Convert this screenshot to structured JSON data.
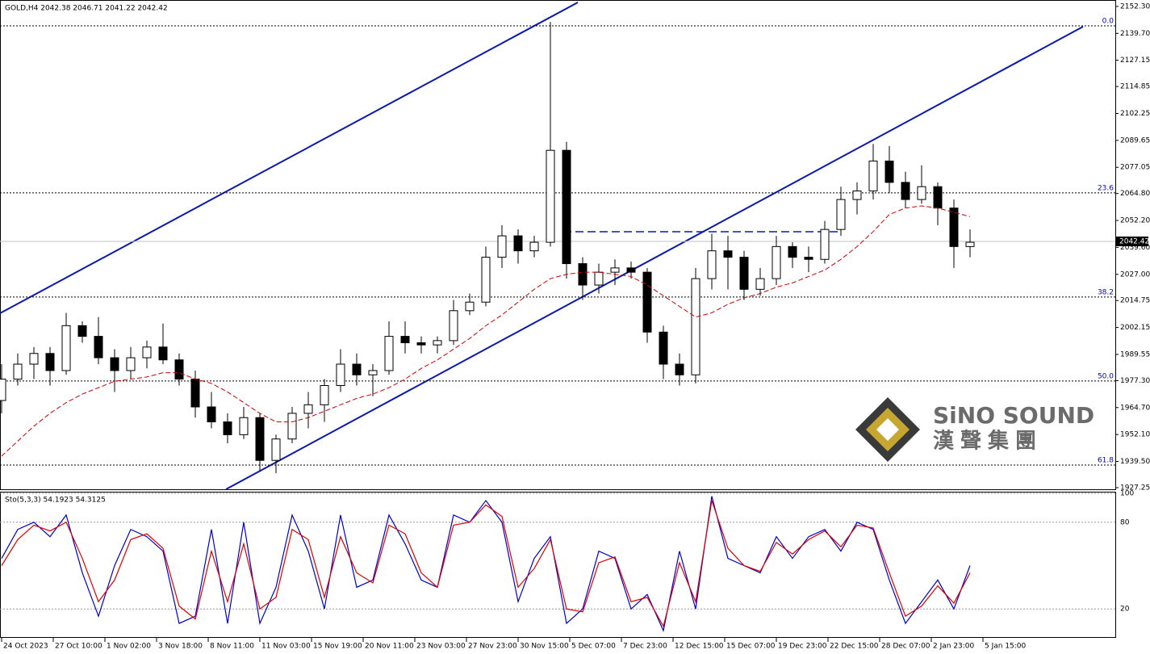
{
  "chart_data": [
    {
      "type": "candlestick",
      "title": "GOLD,H4 2042.38 2046.71 2041.22 2042.42",
      "x": [
        0,
        5,
        10,
        15,
        20,
        25,
        30,
        35,
        40,
        45,
        50,
        55,
        60,
        65,
        70,
        75,
        80,
        85,
        90,
        95,
        100,
        105,
        110,
        115,
        120,
        125,
        130,
        135,
        140,
        145,
        150,
        155,
        160,
        165,
        170,
        175,
        180,
        185,
        190,
        195,
        200,
        205,
        210,
        215,
        220,
        225,
        230,
        235,
        240,
        245,
        250,
        255,
        260,
        265,
        270,
        275,
        280,
        285,
        290,
        295,
        300
      ],
      "xlim": [
        -0.5,
        345
      ],
      "xticks": [
        {
          "value": 0,
          "label": "24 Oct 2023"
        },
        {
          "value": 16,
          "label": "27 Oct 10:00"
        },
        {
          "value": 32,
          "label": "1 Nov 02:00"
        },
        {
          "value": 48,
          "label": "3 Nov 18:00"
        },
        {
          "value": 64,
          "label": "8 Nov 11:00"
        },
        {
          "value": 80,
          "label": "11 Nov 03:00"
        },
        {
          "value": 96,
          "label": "15 Nov 19:00"
        },
        {
          "value": 112,
          "label": "20 Nov 11:00"
        },
        {
          "value": 128,
          "label": "23 Nov 03:00"
        },
        {
          "value": 144,
          "label": "27 Nov 23:00"
        },
        {
          "value": 160,
          "label": "30 Nov 15:00"
        },
        {
          "value": 176,
          "label": "5 Dec 07:00"
        },
        {
          "value": 192,
          "label": "7 Dec 23:00"
        },
        {
          "value": 208,
          "label": "12 Dec 15:00"
        },
        {
          "value": 224,
          "label": "15 Dec 07:00"
        },
        {
          "value": 240,
          "label": "19 Dec 23:00"
        },
        {
          "value": 256,
          "label": "22 Dec 15:00"
        },
        {
          "value": 272,
          "label": "28 Dec 07:00"
        },
        {
          "value": 288,
          "label": "2 Jan 23:00"
        },
        {
          "value": 304,
          "label": "5 Jan 15:00"
        }
      ],
      "ylim": [
        1926.1,
        2155.3
      ],
      "yticks": [
        {
          "value": 2152.3,
          "label": "2152.30"
        },
        {
          "value": 2139.7,
          "label": "2139.70"
        },
        {
          "value": 2127.15,
          "label": "2127.15"
        },
        {
          "value": 2114.85,
          "label": "2114.85"
        },
        {
          "value": 2102.25,
          "label": "2102.25"
        },
        {
          "value": 2089.65,
          "label": "2089.65"
        },
        {
          "value": 2077.05,
          "label": "2077.05"
        },
        {
          "value": 2064.8,
          "label": "2064.80"
        },
        {
          "value": 2052.2,
          "label": "2052.20"
        },
        {
          "value": 2039.6,
          "label": "2039.60"
        },
        {
          "value": 2027,
          "label": "2027.00"
        },
        {
          "value": 2014.75,
          "label": "2014.75"
        },
        {
          "value": 2002.15,
          "label": "2002.15"
        },
        {
          "value": 1989.55,
          "label": "1989.55"
        },
        {
          "value": 1977.3,
          "label": "1977.30"
        },
        {
          "value": 1964.7,
          "label": "1964.70"
        },
        {
          "value": 1952.1,
          "label": "1952.10"
        },
        {
          "value": 1939.5,
          "label": "1939.50"
        },
        {
          "value": 1927.25,
          "label": "1927.25"
        }
      ],
      "ohlc": [
        [
          1968,
          1985,
          1962,
          1978
        ],
        [
          1978,
          1990,
          1975,
          1985
        ],
        [
          1985,
          1993,
          1978,
          1990
        ],
        [
          1990,
          1993,
          1975,
          1982
        ],
        [
          1982,
          2009,
          1980,
          2003
        ],
        [
          2003,
          2005,
          1995,
          1998
        ],
        [
          1998,
          2007,
          1985,
          1988
        ],
        [
          1988,
          1992,
          1972,
          1982
        ],
        [
          1982,
          1993,
          1978,
          1988
        ],
        [
          1988,
          1996,
          1983,
          1993
        ],
        [
          1993,
          2004,
          1985,
          1987
        ],
        [
          1987,
          1990,
          1975,
          1978
        ],
        [
          1978,
          1982,
          1960,
          1965
        ],
        [
          1965,
          1972,
          1955,
          1958
        ],
        [
          1958,
          1962,
          1948,
          1952
        ],
        [
          1952,
          1965,
          1950,
          1960
        ],
        [
          1960,
          1962,
          1935,
          1940
        ],
        [
          1940,
          1952,
          1934,
          1950
        ],
        [
          1950,
          1965,
          1948,
          1962
        ],
        [
          1962,
          1972,
          1955,
          1966
        ],
        [
          1966,
          1978,
          1958,
          1975
        ],
        [
          1975,
          1992,
          1972,
          1985
        ],
        [
          1985,
          1990,
          1975,
          1980
        ],
        [
          1980,
          1985,
          1970,
          1982
        ],
        [
          1982,
          2005,
          1980,
          1998
        ],
        [
          1998,
          2005,
          1990,
          1995
        ],
        [
          1995,
          1998,
          1990,
          1994
        ],
        [
          1994,
          1998,
          1990,
          1996
        ],
        [
          1996,
          2015,
          1994,
          2010
        ],
        [
          2010,
          2018,
          2008,
          2014
        ],
        [
          2014,
          2040,
          2012,
          2035
        ],
        [
          2035,
          2050,
          2030,
          2045
        ],
        [
          2045,
          2048,
          2032,
          2038
        ],
        [
          2038,
          2045,
          2035,
          2042
        ],
        [
          2042,
          2145,
          2040,
          2085
        ],
        [
          2085,
          2089,
          2025,
          2032
        ],
        [
          2032,
          2035,
          2015,
          2022
        ],
        [
          2022,
          2032,
          2018,
          2028
        ],
        [
          2028,
          2034,
          2022,
          2030
        ],
        [
          2030,
          2033,
          2025,
          2028
        ],
        [
          2028,
          2030,
          1995,
          2000
        ],
        [
          2000,
          2003,
          1978,
          1985
        ],
        [
          1985,
          1990,
          1975,
          1980
        ],
        [
          1980,
          2030,
          1976,
          2025
        ],
        [
          2025,
          2046,
          2020,
          2038
        ],
        [
          2038,
          2045,
          2020,
          2035
        ],
        [
          2035,
          2038,
          2015,
          2020
        ],
        [
          2020,
          2030,
          2017,
          2025
        ],
        [
          2025,
          2045,
          2022,
          2040
        ],
        [
          2040,
          2042,
          2030,
          2035
        ],
        [
          2035,
          2040,
          2028,
          2034
        ],
        [
          2034,
          2052,
          2032,
          2048
        ],
        [
          2048,
          2068,
          2045,
          2062
        ],
        [
          2062,
          2070,
          2055,
          2066
        ],
        [
          2066,
          2088,
          2062,
          2080
        ],
        [
          2080,
          2087,
          2065,
          2070
        ],
        [
          2070,
          2075,
          2058,
          2062
        ],
        [
          2062,
          2078,
          2060,
          2068
        ],
        [
          2068,
          2070,
          2050,
          2058
        ],
        [
          2058,
          2062,
          2030,
          2040
        ],
        [
          2040,
          2048,
          2035,
          2042
        ]
      ],
      "up_color": "#ffffff",
      "down_color": "#000000",
      "wick_color": "#000000",
      "moving_average": {
        "color": "#cc0000",
        "values": [
          1942,
          1949,
          1956,
          1962,
          1967,
          1971,
          1974,
          1977,
          1978,
          1979,
          1981,
          1981,
          1978,
          1976,
          1972,
          1967,
          1962,
          1958,
          1958,
          1960,
          1963,
          1966,
          1969,
          1971,
          1974,
          1978,
          1983,
          1987,
          1992,
          1997,
          2003,
          2008,
          2014,
          2020,
          2025,
          2027,
          2028,
          2028,
          2027,
          2026,
          2022,
          2017,
          2012,
          2007,
          2009,
          2013,
          2016,
          2018,
          2021,
          2023,
          2026,
          2029,
          2034,
          2040,
          2047,
          2055,
          2058,
          2059,
          2058,
          2056,
          2054
        ]
      },
      "fib_levels": [
        {
          "label": "0.0",
          "price": 2143.2
        },
        {
          "label": "23.6",
          "price": 2065.1
        },
        {
          "label": "38.2",
          "price": 2016.4
        },
        {
          "label": "50.0",
          "price": 1977.1
        },
        {
          "label": "61.8",
          "price": 1937.8
        }
      ],
      "fib_color": "#0000cc",
      "last_price": 2042.42,
      "watermark": {
        "name": "SiNO SOUND",
        "name_cn": "漢聲集團"
      }
    },
    {
      "type": "line",
      "title": "Sto(5,3,3) 54.1923 54.3125",
      "x": [
        0,
        5,
        10,
        15,
        20,
        25,
        30,
        35,
        40,
        45,
        50,
        55,
        60,
        65,
        70,
        75,
        80,
        85,
        90,
        95,
        100,
        105,
        110,
        115,
        120,
        125,
        130,
        135,
        140,
        145,
        150,
        155,
        160,
        165,
        170,
        175,
        180,
        185,
        190,
        195,
        200,
        205,
        210,
        215,
        220,
        225,
        230,
        235,
        240,
        245,
        250,
        255,
        260,
        265,
        270,
        275,
        280,
        285,
        290,
        295,
        300
      ],
      "xlim": [
        -0.5,
        345
      ],
      "ylim": [
        0,
        100
      ],
      "yticks": [
        100,
        80,
        20
      ],
      "series": [
        {
          "color": "#0000cc",
          "values": [
            55,
            75,
            80,
            70,
            85,
            45,
            15,
            50,
            75,
            70,
            60,
            10,
            15,
            75,
            10,
            80,
            10,
            35,
            85,
            60,
            20,
            85,
            35,
            40,
            85,
            65,
            40,
            35,
            85,
            80,
            95,
            80,
            25,
            55,
            70,
            10,
            20,
            60,
            55,
            20,
            30,
            5,
            60,
            20,
            98,
            55,
            50,
            45,
            70,
            55,
            70,
            75,
            60,
            80,
            75,
            40,
            10,
            25,
            40,
            20,
            50
          ]
        },
        {
          "color": "#dd0000",
          "values": [
            50,
            68,
            78,
            74,
            80,
            55,
            25,
            40,
            68,
            72,
            62,
            22,
            13,
            60,
            25,
            65,
            20,
            28,
            75,
            68,
            28,
            70,
            45,
            38,
            78,
            72,
            45,
            35,
            78,
            80,
            92,
            84,
            35,
            48,
            68,
            20,
            18,
            52,
            56,
            25,
            28,
            8,
            52,
            25,
            95,
            62,
            50,
            46,
            66,
            58,
            68,
            74,
            63,
            78,
            76,
            45,
            15,
            22,
            36,
            24,
            45
          ]
        }
      ]
    }
  ]
}
